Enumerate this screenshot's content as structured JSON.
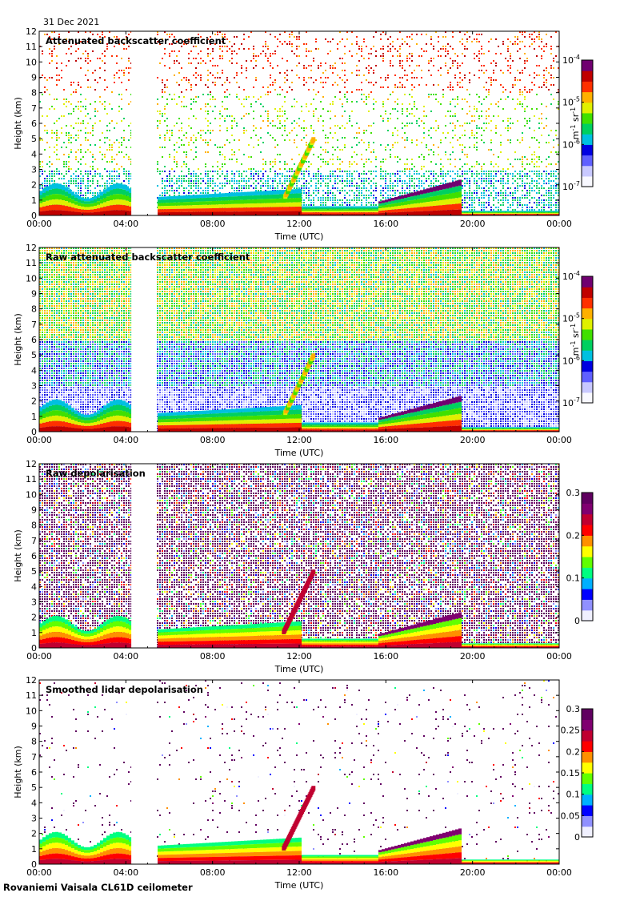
{
  "header": {
    "date": "31 Dec 2021"
  },
  "footer": {
    "site": "Rovaniemi Vaisala CL61D ceilometer"
  },
  "chart_data": [
    {
      "type": "heatmap",
      "title": "Attenuated backscatter coefficient",
      "xlabel": "Time (UTC)",
      "ylabel": "Height (km)",
      "x_ticks": [
        "00:00",
        "04:00",
        "08:00",
        "12:00",
        "16:00",
        "20:00",
        "00:00"
      ],
      "y_ticks": [
        "0",
        "1",
        "2",
        "3",
        "4",
        "5",
        "6",
        "7",
        "8",
        "9",
        "10",
        "11",
        "12"
      ],
      "ylim": [
        0,
        12
      ],
      "xlim_hours": [
        0,
        24
      ],
      "colorbar": {
        "scale": "log",
        "ticks": [
          "10^-7",
          "10^-6",
          "10^-5",
          "10^-4"
        ],
        "label": "m-1 sr-1"
      },
      "colormap": [
        "#ffffff",
        "#c8c8ff",
        "#3030ff",
        "#00d0d0",
        "#00c000",
        "#ffff00",
        "#ff8000",
        "#e00000",
        "#800080"
      ]
    },
    {
      "type": "heatmap",
      "title": "Raw attenuated backscatter coefficient",
      "xlabel": "Time (UTC)",
      "ylabel": "Height (km)",
      "x_ticks": [
        "00:00",
        "04:00",
        "08:00",
        "12:00",
        "16:00",
        "20:00",
        "00:00"
      ],
      "y_ticks": [
        "0",
        "1",
        "2",
        "3",
        "4",
        "5",
        "6",
        "7",
        "8",
        "9",
        "10",
        "11",
        "12"
      ],
      "ylim": [
        0,
        12
      ],
      "xlim_hours": [
        0,
        24
      ],
      "colorbar": {
        "scale": "log",
        "ticks": [
          "10^-7",
          "10^-6",
          "10^-5",
          "10^-4"
        ],
        "label": "m-1 sr-1"
      }
    },
    {
      "type": "heatmap",
      "title": "Raw depolarisation",
      "xlabel": "Time (UTC)",
      "ylabel": "Height (km)",
      "x_ticks": [
        "00:00",
        "04:00",
        "08:00",
        "12:00",
        "16:00",
        "20:00",
        "00:00"
      ],
      "y_ticks": [
        "0",
        "1",
        "2",
        "3",
        "4",
        "5",
        "6",
        "7",
        "8",
        "9",
        "10",
        "11",
        "12"
      ],
      "ylim": [
        0,
        12
      ],
      "xlim_hours": [
        0,
        24
      ],
      "colorbar": {
        "scale": "linear",
        "ticks": [
          "0",
          "0.1",
          "0.2",
          "0.3"
        ]
      }
    },
    {
      "type": "heatmap",
      "title": "Smoothed lidar depolarisation",
      "xlabel": "Time (UTC)",
      "ylabel": "Height (km)",
      "x_ticks": [
        "00:00",
        "04:00",
        "08:00",
        "12:00",
        "16:00",
        "20:00",
        "00:00"
      ],
      "y_ticks": [
        "0",
        "1",
        "2",
        "3",
        "4",
        "5",
        "6",
        "7",
        "8",
        "9",
        "10",
        "11",
        "12"
      ],
      "ylim": [
        0,
        12
      ],
      "xlim_hours": [
        0,
        24
      ],
      "colorbar": {
        "scale": "linear",
        "ticks": [
          "0",
          "0.05",
          "0.1",
          "0.15",
          "0.2",
          "0.25",
          "0.3"
        ]
      }
    }
  ]
}
